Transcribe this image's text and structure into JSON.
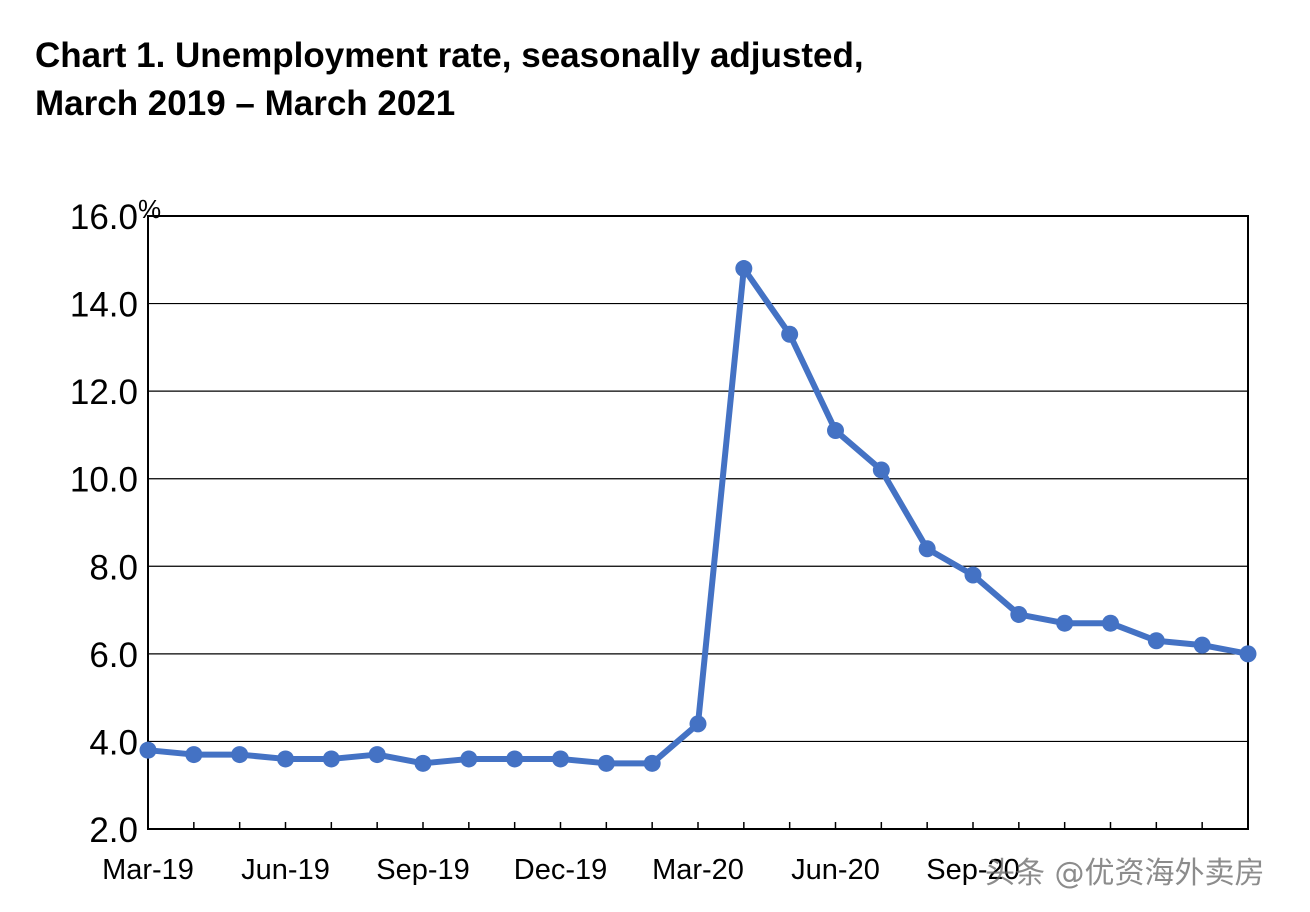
{
  "title_line1": "Chart 1. Unemployment rate, seasonally adjusted,",
  "title_line2": "March 2019 – March 2021",
  "watermark": "头条 @优资海外卖房",
  "chart_data": {
    "type": "line",
    "title": "Chart 1. Unemployment rate, seasonally adjusted, March 2019 – March 2021",
    "xlabel": "",
    "ylabel": "",
    "y_unit": "%",
    "ylim": [
      2.0,
      16.0
    ],
    "yticks": [
      "2.0",
      "4.0",
      "6.0",
      "8.0",
      "10.0",
      "12.0",
      "14.0",
      "16.0"
    ],
    "xticks": [
      "Mar-19",
      "Jun-19",
      "Sep-19",
      "Dec-19",
      "Mar-20",
      "Jun-20",
      "Sep-20"
    ],
    "grid": true,
    "line_color": "#4472C4",
    "x": [
      "Mar-19",
      "Apr-19",
      "May-19",
      "Jun-19",
      "Jul-19",
      "Aug-19",
      "Sep-19",
      "Oct-19",
      "Nov-19",
      "Dec-19",
      "Jan-20",
      "Feb-20",
      "Mar-20",
      "Apr-20",
      "May-20",
      "Jun-20",
      "Jul-20",
      "Aug-20",
      "Sep-20",
      "Oct-20",
      "Nov-20",
      "Dec-20",
      "Jan-21",
      "Feb-21",
      "Mar-21"
    ],
    "series": [
      {
        "values": [
          3.8,
          3.7,
          3.7,
          3.6,
          3.6,
          3.7,
          3.5,
          3.6,
          3.6,
          3.6,
          3.5,
          3.5,
          4.4,
          14.8,
          13.3,
          11.1,
          10.2,
          8.4,
          7.8,
          6.9,
          6.7,
          6.7,
          6.3,
          6.2,
          6.0
        ]
      }
    ]
  }
}
